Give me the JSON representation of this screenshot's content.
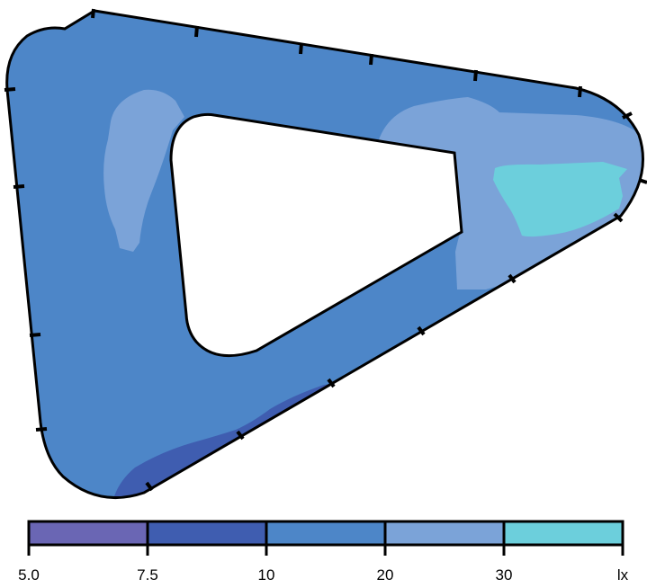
{
  "legend": {
    "unit": "lx",
    "tick_labels": [
      "5.0",
      "7.5",
      "10",
      "20",
      "30"
    ],
    "bands": [
      {
        "from": "5.0",
        "to": "7.5",
        "color": "#6a66b4"
      },
      {
        "from": "7.5",
        "to": "10",
        "color": "#3f5db0"
      },
      {
        "from": "10",
        "to": "20",
        "color": "#4d86c8"
      },
      {
        "from": "20",
        "to": "30",
        "color": "#7ba3d8"
      },
      {
        "from": "30",
        "to": "",
        "color": "#6ccfdc"
      }
    ]
  },
  "colors": {
    "band_5_7_5": "#6a66b4",
    "band_7_5_10": "#3f5db0",
    "band_10_20": "#4d86c8",
    "band_20_30": "#7ba3d8",
    "band_30_plus": "#6ccfdc",
    "outline": "#000000"
  }
}
